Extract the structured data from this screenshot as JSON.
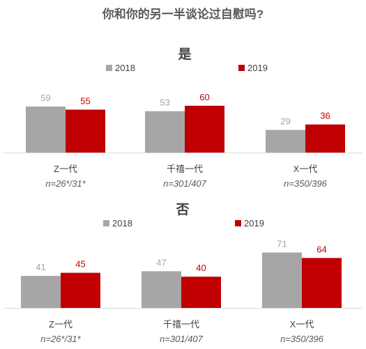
{
  "title": "你和你的另一半谈论过自慰吗?",
  "colors": {
    "series_2018": "#a6a6a6",
    "series_2019": "#c00000",
    "axis": "#d9d9d9"
  },
  "chart_data": [
    {
      "type": "bar",
      "title": "是",
      "categories": [
        "Z一代",
        "千禧一代",
        "X一代"
      ],
      "sample_sizes": [
        "n=26*/31*",
        "n=301/407",
        "n=350/396"
      ],
      "series": [
        {
          "name": "2018",
          "values": [
            59,
            53,
            29
          ],
          "color": "#a6a6a6"
        },
        {
          "name": "2019",
          "values": [
            55,
            60,
            36
          ],
          "color": "#c00000"
        }
      ],
      "xlabel": "",
      "ylabel": "",
      "ylim": [
        0,
        100
      ],
      "grid": false,
      "legend": "top-center"
    },
    {
      "type": "bar",
      "title": "否",
      "categories": [
        "Z一代",
        "千禧一代",
        "X一代"
      ],
      "sample_sizes": [
        "n=26*/31*",
        "n=301/407",
        "n=350/396"
      ],
      "series": [
        {
          "name": "2018",
          "values": [
            41,
            47,
            71
          ],
          "color": "#a6a6a6"
        },
        {
          "name": "2019",
          "values": [
            45,
            40,
            64
          ],
          "color": "#c00000"
        }
      ],
      "xlabel": "",
      "ylabel": "",
      "ylim": [
        0,
        100
      ],
      "grid": false,
      "legend": "top-center"
    }
  ]
}
